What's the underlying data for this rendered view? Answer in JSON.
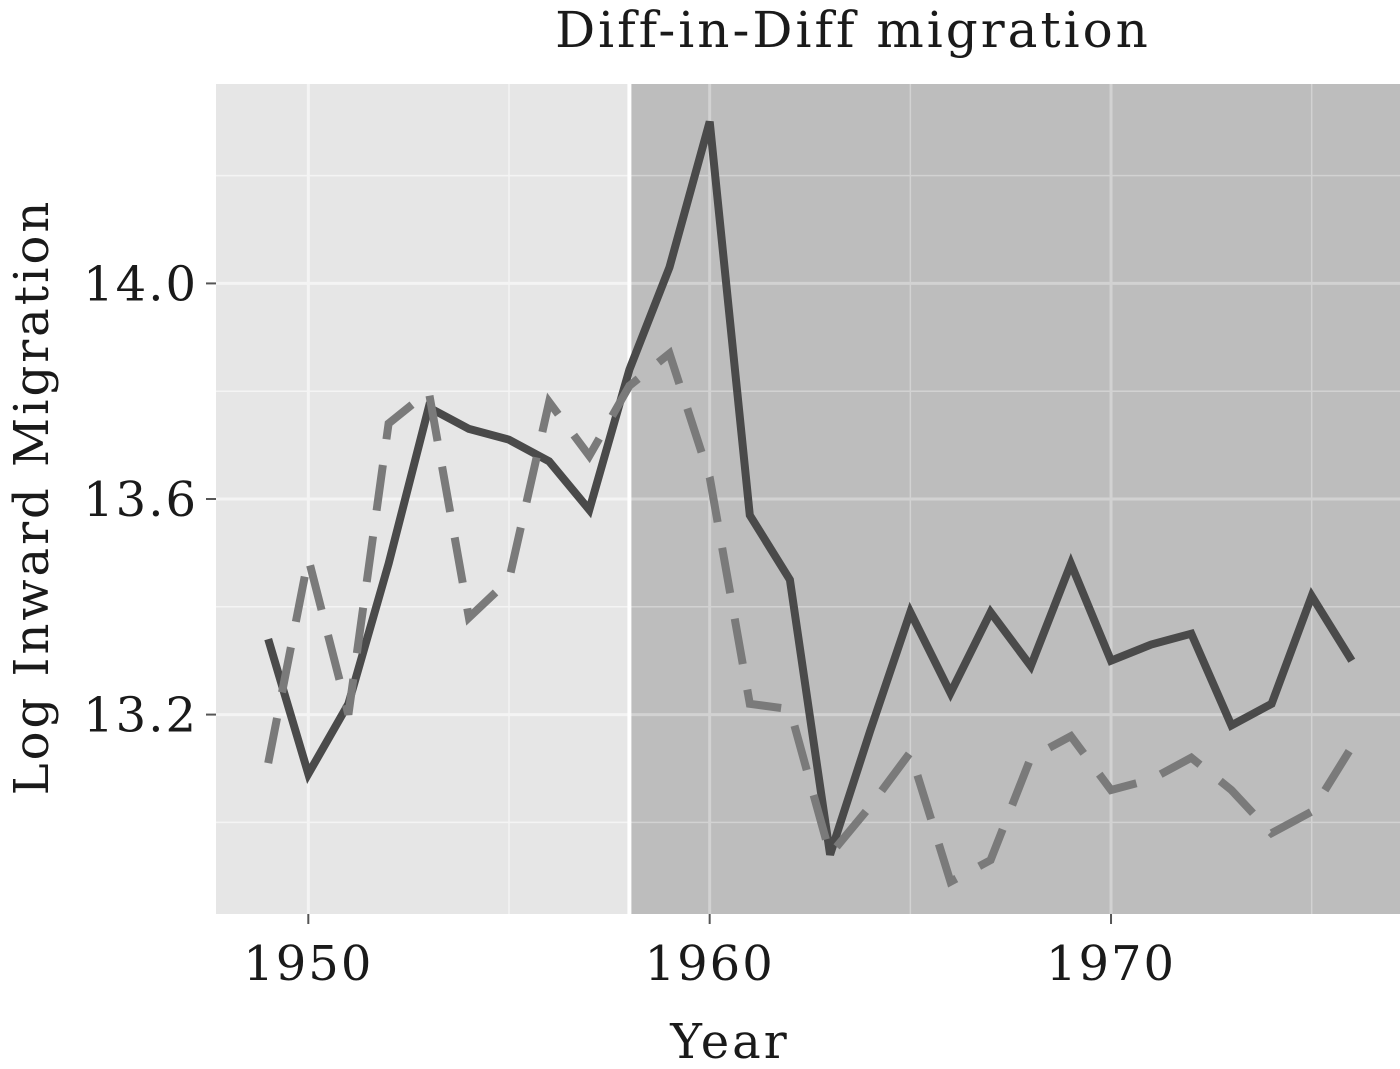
{
  "chart_data": {
    "type": "line",
    "title": "Diff-in-Diff migration",
    "xlabel": "Year",
    "ylabel": "Log Inward Migration",
    "xlim": [
      1947.7,
      1977.2
    ],
    "ylim": [
      12.83,
      14.37
    ],
    "x_ticks": [
      "1950",
      "1960",
      "1970"
    ],
    "y_ticks": [
      "13.2",
      "13.6",
      "14.0"
    ],
    "treatment_start": 1958,
    "grid": true,
    "legend": "none",
    "colors": {
      "panel_pre": "#e6e6e6",
      "panel_post": "#bdbdbd",
      "grid": "#f4f4f4",
      "grid_post": "#d2d2d2",
      "solid_line": "#4a4a4a",
      "dashed_line": "#7a7a7a",
      "treatment_line": "#ffffff"
    },
    "series": [
      {
        "style": "solid",
        "x": [
          1949,
          1950,
          1951,
          1952,
          1953,
          1954,
          1955,
          1956,
          1957,
          1958,
          1959,
          1960,
          1961,
          1962,
          1963,
          1964,
          1965,
          1966,
          1967,
          1968,
          1969,
          1970,
          1971,
          1972,
          1973,
          1974,
          1975,
          1976
        ],
        "values": [
          13.34,
          13.09,
          13.22,
          13.48,
          13.77,
          13.73,
          13.71,
          13.67,
          13.58,
          13.84,
          14.03,
          14.3,
          13.57,
          13.45,
          12.94,
          13.17,
          13.39,
          13.24,
          13.39,
          13.29,
          13.48,
          13.3,
          13.33,
          13.35,
          13.18,
          13.22,
          13.42,
          13.3
        ]
      },
      {
        "style": "dashed",
        "x": [
          1949,
          1950,
          1951,
          1952,
          1953,
          1954,
          1955,
          1956,
          1957,
          1958,
          1959,
          1960,
          1961,
          1962,
          1963,
          1964,
          1965,
          1966,
          1967,
          1968,
          1969,
          1970,
          1971,
          1972,
          1973,
          1974,
          1975,
          1976
        ],
        "values": [
          13.11,
          13.49,
          13.2,
          13.74,
          13.8,
          13.38,
          13.45,
          13.78,
          13.68,
          13.81,
          13.87,
          13.64,
          13.22,
          13.21,
          12.94,
          13.03,
          13.13,
          12.89,
          12.93,
          13.12,
          13.16,
          13.06,
          13.08,
          13.12,
          13.06,
          12.98,
          13.02,
          13.14
        ]
      }
    ]
  }
}
